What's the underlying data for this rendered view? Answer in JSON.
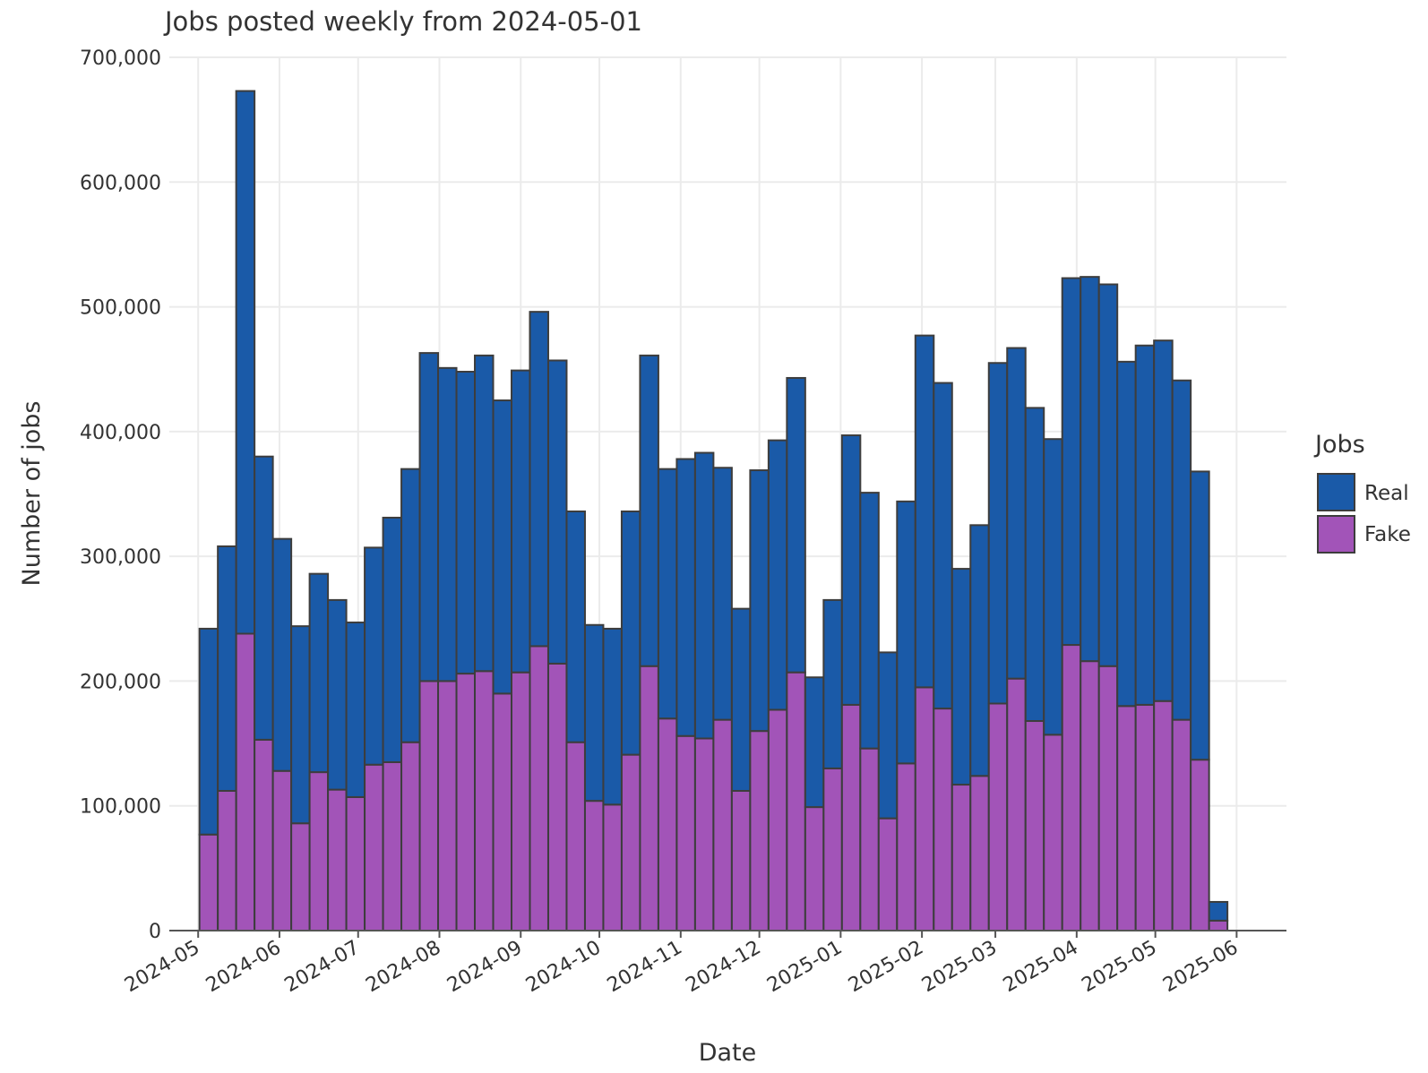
{
  "chart_data": {
    "type": "bar",
    "stacked": true,
    "title": "Jobs posted weekly from 2024-05-01",
    "xlabel": "Date",
    "ylabel": "Number of jobs",
    "ylim": [
      0,
      700000
    ],
    "yticks": [
      0,
      100000,
      200000,
      300000,
      400000,
      500000,
      600000,
      700000
    ],
    "ytick_labels": [
      "0",
      "100,000",
      "200,000",
      "300,000",
      "400,000",
      "500,000",
      "600,000",
      "700,000"
    ],
    "xticks": [
      "2024-05-01",
      "2024-06-01",
      "2024-07-01",
      "2024-08-01",
      "2024-09-01",
      "2024-10-01",
      "2024-11-01",
      "2024-12-01",
      "2025-01-01",
      "2025-02-01",
      "2025-03-01",
      "2025-04-01",
      "2025-05-01",
      "2025-06-01"
    ],
    "xtick_labels": [
      "2024-05",
      "2024-06",
      "2024-07",
      "2024-08",
      "2024-09",
      "2024-10",
      "2024-11",
      "2024-12",
      "2025-01",
      "2025-02",
      "2025-03",
      "2025-04",
      "2025-05",
      "2025-06"
    ],
    "xlim": [
      "2024-04-20",
      "2025-06-20"
    ],
    "bar_width_days": 7,
    "grid": true,
    "legend_title": "Jobs",
    "legend_position": "right",
    "x": [
      "2024-05-05",
      "2024-05-12",
      "2024-05-19",
      "2024-05-26",
      "2024-06-02",
      "2024-06-09",
      "2024-06-16",
      "2024-06-23",
      "2024-06-30",
      "2024-07-07",
      "2024-07-14",
      "2024-07-21",
      "2024-07-28",
      "2024-08-04",
      "2024-08-11",
      "2024-08-18",
      "2024-08-25",
      "2024-09-01",
      "2024-09-08",
      "2024-09-15",
      "2024-09-22",
      "2024-09-29",
      "2024-10-06",
      "2024-10-13",
      "2024-10-20",
      "2024-10-27",
      "2024-11-03",
      "2024-11-10",
      "2024-11-17",
      "2024-11-24",
      "2024-12-01",
      "2024-12-08",
      "2024-12-15",
      "2024-12-22",
      "2024-12-29",
      "2025-01-05",
      "2025-01-12",
      "2025-01-19",
      "2025-01-26",
      "2025-02-02",
      "2025-02-09",
      "2025-02-16",
      "2025-02-23",
      "2025-03-02",
      "2025-03-09",
      "2025-03-16",
      "2025-03-23",
      "2025-03-30",
      "2025-04-06",
      "2025-04-13",
      "2025-04-20",
      "2025-04-27",
      "2025-05-04",
      "2025-05-11",
      "2025-05-18",
      "2025-05-25"
    ],
    "series": [
      {
        "name": "Fake",
        "color": "#a254b8",
        "values": [
          77000,
          112000,
          238000,
          153000,
          128000,
          86000,
          127000,
          113000,
          107000,
          133000,
          135000,
          151000,
          200000,
          200000,
          206000,
          208000,
          190000,
          207000,
          228000,
          214000,
          151000,
          104000,
          101000,
          141000,
          212000,
          170000,
          156000,
          154000,
          169000,
          112000,
          160000,
          177000,
          207000,
          99000,
          130000,
          181000,
          146000,
          90000,
          134000,
          195000,
          178000,
          117000,
          124000,
          182000,
          202000,
          168000,
          157000,
          229000,
          216000,
          212000,
          180000,
          181000,
          184000,
          169000,
          137000,
          8000
        ]
      },
      {
        "name": "Real",
        "color": "#1a5aa8",
        "values": [
          165000,
          196000,
          435000,
          227000,
          186000,
          158000,
          159000,
          152000,
          140000,
          174000,
          196000,
          219000,
          263000,
          251000,
          242000,
          253000,
          235000,
          242000,
          268000,
          243000,
          185000,
          141000,
          141000,
          195000,
          249000,
          200000,
          222000,
          229000,
          202000,
          146000,
          209000,
          216000,
          236000,
          104000,
          135000,
          216000,
          205000,
          133000,
          210000,
          282000,
          261000,
          173000,
          201000,
          273000,
          265000,
          251000,
          237000,
          294000,
          308000,
          306000,
          276000,
          288000,
          289000,
          272000,
          231000,
          15000
        ]
      }
    ]
  }
}
